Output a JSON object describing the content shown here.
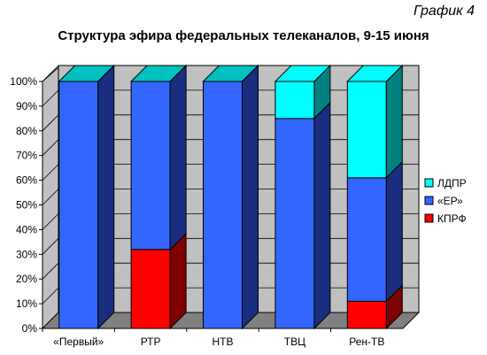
{
  "figure_label": "График 4",
  "chart_data": {
    "type": "bar",
    "stacked": true,
    "three_d": true,
    "title": "Структура эфира федеральных телеканалов, 9-15 июня",
    "categories": [
      "«Первый»",
      "РТР",
      "НТВ",
      "ТВЦ",
      "Рен-ТВ"
    ],
    "series": [
      {
        "name": "КПРФ",
        "color": "#ff0000",
        "side_color": "#7f0000",
        "values": [
          0,
          32,
          0,
          0,
          11
        ]
      },
      {
        "name": "«ЕР»",
        "color": "#3366ff",
        "side_color": "#1a2e80",
        "values": [
          100,
          68,
          100,
          85,
          50
        ]
      },
      {
        "name": "ЛДПР",
        "color": "#00ffff",
        "side_color": "#008080",
        "values": [
          0,
          0,
          0,
          15,
          39
        ]
      }
    ],
    "ylim": [
      0,
      100
    ],
    "yticks": [
      "0%",
      "10%",
      "20%",
      "30%",
      "40%",
      "50%",
      "60%",
      "70%",
      "80%",
      "90%",
      "100%"
    ],
    "legend_position": "right",
    "legend_order": [
      "ЛДПР",
      "«ЕР»",
      "КПРФ"
    ]
  }
}
